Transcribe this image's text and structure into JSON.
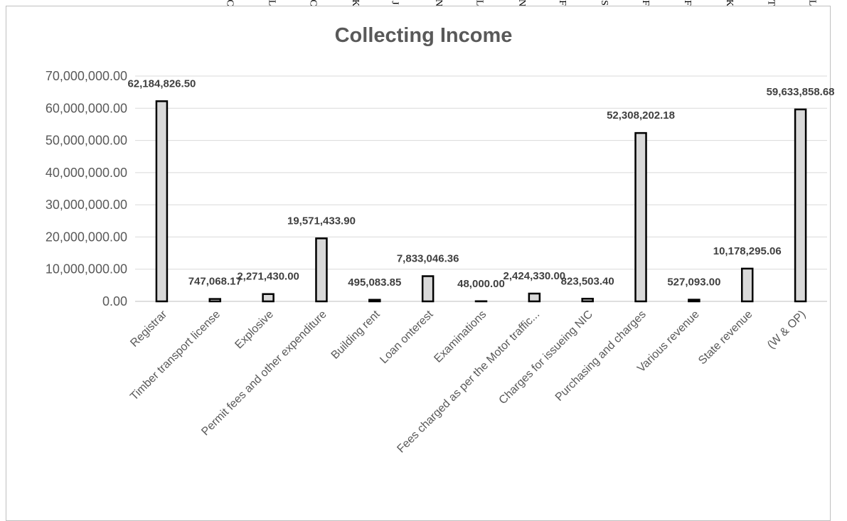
{
  "top_strip_glyphs": [
    "C",
    "L",
    "C",
    "K",
    "J",
    "N",
    "L",
    "N",
    "F",
    "S",
    "F",
    "F",
    "K",
    "T",
    "L"
  ],
  "chart_data": {
    "type": "bar",
    "title": "Collecting Income",
    "xlabel": "",
    "ylabel": "",
    "ylim": [
      0,
      70000000
    ],
    "y_ticks": [
      "0.00",
      "10,000,000.00",
      "20,000,000.00",
      "30,000,000.00",
      "40,000,000.00",
      "50,000,000.00",
      "60,000,000.00",
      "70,000,000.00"
    ],
    "categories": [
      "Registrar",
      "Timber transport license",
      "Explosive",
      "Permit fees and other expenditure",
      "Building rent",
      "Loan onterest",
      "Examinations",
      "Fees charged as per the Motor traffic...",
      "Charges for issueing NIC",
      "Purchasing and charges",
      "Various revenue",
      "State revenue",
      "(W & OP)"
    ],
    "values": [
      62184826.5,
      747068.17,
      2271430.0,
      19571433.9,
      495083.85,
      7833046.36,
      48000.0,
      2424330.0,
      823503.4,
      52308202.18,
      527093.0,
      10178295.06,
      59633858.68
    ],
    "data_labels": [
      "62,184,826.50",
      "747,068.17",
      "2,271,430.00",
      "19,571,433.90",
      "495,083.85",
      "7,833,046.36",
      "48,000.00",
      "2,424,330.00",
      "823,503.40",
      "52,308,202.18",
      "527,093.00",
      "10,178,295.06",
      "59,633,858.68"
    ],
    "grid": true,
    "legend": "none",
    "colors": {
      "bar_fill": "#d9d9d9",
      "bar_stroke": "#000000",
      "grid": "#d9d9d9",
      "text": "#595959"
    }
  }
}
